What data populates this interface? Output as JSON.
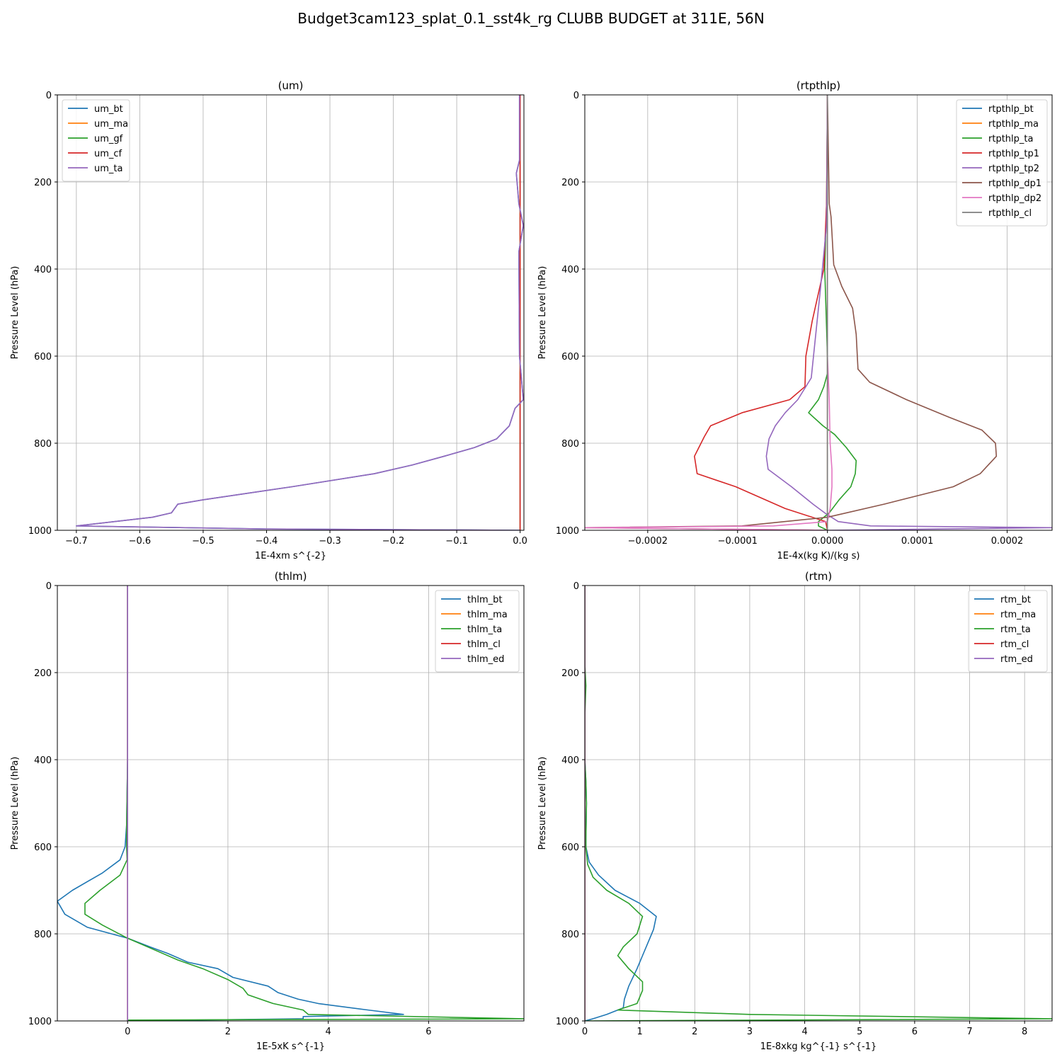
{
  "title": "Budget3cam123_splat_0.1_sst4k_rg CLUBB BUDGET at 311E, 56N",
  "colors": {
    "C0": "#1f77b4",
    "C1": "#ff7f0e",
    "C2": "#2ca02c",
    "C3": "#d62728",
    "C4": "#9467bd",
    "C5": "#8c564b",
    "C6": "#e377c2",
    "C7": "#7f7f7f"
  },
  "chart_data": [
    {
      "type": "line",
      "title": "(um)",
      "xlabel": "1E-4xm s^{-2}",
      "ylabel": "Pressure Level (hPa)",
      "xlim": [
        -0.73,
        0.006
      ],
      "ylim": [
        1000,
        0
      ],
      "xticks": [
        -0.7,
        -0.6,
        -0.5,
        -0.4,
        -0.3,
        -0.2,
        -0.1,
        0.0
      ],
      "xtick_labels": [
        "−0.7",
        "−0.6",
        "−0.5",
        "−0.4",
        "−0.3",
        "−0.2",
        "−0.1",
        "0.0"
      ],
      "yticks": [
        0,
        200,
        400,
        600,
        800,
        1000
      ],
      "ytick_labels": [
        "0",
        "200",
        "400",
        "600",
        "800",
        "1000"
      ],
      "grid": true,
      "legend": "upper-left",
      "series": [
        {
          "name": "um_bt",
          "color": "C0",
          "p": [
            0,
            150,
            180,
            250,
            300,
            360,
            600,
            700,
            720,
            760,
            790,
            810,
            830,
            850,
            870,
            900,
            930,
            940,
            960,
            970,
            990,
            997,
            1000
          ],
          "v": [
            -0.001,
            -0.001,
            -0.006,
            -0.002,
            0.005,
            -0.002,
            -0.001,
            0.005,
            -0.008,
            -0.017,
            -0.037,
            -0.072,
            -0.12,
            -0.17,
            -0.23,
            -0.36,
            -0.5,
            -0.54,
            -0.55,
            -0.58,
            -0.7,
            -0.4,
            0.0
          ]
        },
        {
          "name": "um_ma",
          "color": "C1",
          "p": [
            0,
            1000
          ],
          "v": [
            0,
            0
          ]
        },
        {
          "name": "um_gf",
          "color": "C2",
          "p": [
            0,
            1000
          ],
          "v": [
            0,
            0
          ]
        },
        {
          "name": "um_cf",
          "color": "C3",
          "p": [
            0,
            1000
          ],
          "v": [
            0,
            0
          ]
        },
        {
          "name": "um_ta",
          "color": "C4",
          "p": [
            0,
            150,
            180,
            250,
            300,
            360,
            600,
            700,
            720,
            760,
            790,
            810,
            830,
            850,
            870,
            900,
            930,
            940,
            960,
            970,
            990,
            997,
            1000
          ],
          "v": [
            -0.001,
            -0.001,
            -0.006,
            -0.002,
            0.005,
            -0.002,
            -0.001,
            0.005,
            -0.008,
            -0.017,
            -0.037,
            -0.072,
            -0.12,
            -0.17,
            -0.23,
            -0.36,
            -0.5,
            -0.54,
            -0.55,
            -0.58,
            -0.7,
            -0.4,
            0.0
          ]
        }
      ]
    },
    {
      "type": "line",
      "title": "(rtpthlp)",
      "xlabel": "1E-4x(kg K)/(kg s)",
      "ylabel": "Pressure Level (hPa)",
      "xlim": [
        -0.00027,
        0.00025
      ],
      "ylim": [
        1000,
        0
      ],
      "xticks": [
        -0.0002,
        -0.0001,
        0.0,
        0.0001,
        0.0002
      ],
      "xtick_labels": [
        "−0.0002",
        "−0.0001",
        "0.0000",
        "0.0001",
        "0.0002"
      ],
      "yticks": [
        0,
        200,
        400,
        600,
        800,
        1000
      ],
      "ytick_labels": [
        "0",
        "200",
        "400",
        "600",
        "800",
        "1000"
      ],
      "grid": true,
      "legend": "upper-right",
      "series": [
        {
          "name": "rtpthlp_bt",
          "color": "C0",
          "p": [
            0,
            1000
          ],
          "v": [
            0,
            0
          ]
        },
        {
          "name": "rtpthlp_ma",
          "color": "C1",
          "p": [
            0,
            1000
          ],
          "v": [
            0,
            0
          ]
        },
        {
          "name": "rtpthlp_ta",
          "color": "C2",
          "p": [
            0,
            250,
            400,
            600,
            640,
            670,
            700,
            730,
            760,
            780,
            810,
            840,
            870,
            900,
            930,
            960,
            980,
            990,
            1000
          ],
          "v": [
            0,
            -1e-06,
            -3e-06,
            0.0,
            0.0,
            -4e-06,
            -1e-05,
            -2.1e-05,
            -5e-06,
            8e-06,
            2.1e-05,
            3.2e-05,
            3.1e-05,
            2.6e-05,
            1.3e-05,
            2e-06,
            -1e-05,
            -1e-05,
            0.0
          ]
        },
        {
          "name": "rtpthlp_tp1",
          "color": "C3",
          "p": [
            0,
            250,
            400,
            520,
            600,
            670,
            700,
            730,
            760,
            785,
            830,
            870,
            900,
            950,
            980,
            1000
          ],
          "v": [
            0,
            -1e-06,
            -4e-06,
            -1.7e-05,
            -2.4e-05,
            -2.5e-05,
            -4.2e-05,
            -9.5e-05,
            -0.00013,
            -0.000137,
            -0.000148,
            -0.000145,
            -0.000102,
            -4.7e-05,
            -2e-06,
            0.0
          ]
        },
        {
          "name": "rtpthlp_tp2",
          "color": "C4",
          "p": [
            0,
            300,
            450,
            550,
            650,
            700,
            730,
            760,
            790,
            830,
            860,
            900,
            940,
            960,
            980,
            990,
            994,
            1000
          ],
          "v": [
            0,
            -1e-06,
            -8e-06,
            -1.3e-05,
            -1.8e-05,
            -3.3e-05,
            -4.7e-05,
            -5.8e-05,
            -6.5e-05,
            -6.8e-05,
            -6.6e-05,
            -4e-05,
            -1.6e-05,
            -3e-06,
            1.2e-05,
            4.8e-05,
            0.00025,
            0.0
          ]
        },
        {
          "name": "rtpthlp_dp1",
          "color": "C5",
          "p": [
            0,
            250,
            280,
            390,
            440,
            490,
            550,
            630,
            660,
            700,
            740,
            770,
            800,
            830,
            870,
            900,
            940,
            970,
            990,
            994,
            1000
          ],
          "v": [
            0,
            2e-06,
            4e-06,
            7e-06,
            1.6e-05,
            2.8e-05,
            3.2e-05,
            3.4e-05,
            4.7e-05,
            8.8e-05,
            0.000135,
            0.000172,
            0.000187,
            0.000188,
            0.00017,
            0.00014,
            6.3e-05,
            0.0,
            -9.5e-05,
            -0.00027,
            0.0
          ]
        },
        {
          "name": "rtpthlp_dp2",
          "color": "C6",
          "p": [
            0,
            600,
            700,
            800,
            860,
            900,
            950,
            980,
            990,
            994,
            1000
          ],
          "v": [
            0,
            0.0,
            2e-06,
            3e-06,
            5e-06,
            5e-06,
            3e-06,
            0.0,
            -6e-05,
            -0.00027,
            0.0
          ]
        },
        {
          "name": "rtpthlp_cl",
          "color": "C7",
          "p": [
            0,
            1000
          ],
          "v": [
            0,
            0
          ]
        }
      ]
    },
    {
      "type": "line",
      "title": "(thlm)",
      "xlabel": "1E-5xK s^{-1}",
      "ylabel": "Pressure Level (hPa)",
      "xlim": [
        -1.4,
        7.9
      ],
      "ylim": [
        1000,
        0
      ],
      "xticks": [
        0,
        2,
        4,
        6
      ],
      "xtick_labels": [
        "0",
        "2",
        "4",
        "6"
      ],
      "yticks": [
        0,
        200,
        400,
        600,
        800,
        1000
      ],
      "ytick_labels": [
        "0",
        "200",
        "400",
        "600",
        "800",
        "1000"
      ],
      "grid": true,
      "legend": "upper-right",
      "series": [
        {
          "name": "thlm_bt",
          "color": "C0",
          "p": [
            0,
            400,
            550,
            600,
            630,
            660,
            700,
            725,
            755,
            785,
            810,
            830,
            845,
            865,
            880,
            900,
            920,
            935,
            950,
            960,
            975,
            985,
            990,
            995,
            1000
          ],
          "v": [
            0,
            0.0,
            -0.02,
            -0.05,
            -0.15,
            -0.5,
            -1.1,
            -1.4,
            -1.25,
            -0.8,
            0.0,
            0.45,
            0.8,
            1.2,
            1.8,
            2.1,
            2.8,
            3.0,
            3.4,
            3.8,
            4.8,
            5.5,
            3.5,
            3.5,
            0.0
          ]
        },
        {
          "name": "thlm_ma",
          "color": "C1",
          "p": [
            0,
            1000
          ],
          "v": [
            0,
            0
          ]
        },
        {
          "name": "thlm_ta",
          "color": "C2",
          "p": [
            0,
            400,
            550,
            600,
            630,
            665,
            700,
            730,
            755,
            780,
            810,
            830,
            860,
            880,
            905,
            925,
            940,
            960,
            975,
            985,
            995,
            998,
            1000
          ],
          "v": [
            0,
            0.0,
            -0.02,
            -0.02,
            -0.01,
            -0.15,
            -0.55,
            -0.85,
            -0.85,
            -0.5,
            0.0,
            0.4,
            1.0,
            1.5,
            2.0,
            2.3,
            2.4,
            2.9,
            3.5,
            3.6,
            7.9,
            0.0,
            0.0
          ]
        },
        {
          "name": "thlm_cl",
          "color": "C3",
          "p": [
            0,
            1000
          ],
          "v": [
            0,
            0
          ]
        },
        {
          "name": "thlm_ed",
          "color": "C4",
          "p": [
            0,
            1000
          ],
          "v": [
            0,
            0
          ]
        }
      ]
    },
    {
      "type": "line",
      "title": "(rtm)",
      "xlabel": "1E-8xkg kg^{-1} s^{-1}",
      "ylabel": "Pressure Level (hPa)",
      "xlim": [
        0,
        8.5
      ],
      "ylim": [
        1000,
        0
      ],
      "xticks": [
        0,
        1,
        2,
        3,
        4,
        5,
        6,
        7,
        8
      ],
      "xtick_labels": [
        "0",
        "1",
        "2",
        "3",
        "4",
        "5",
        "6",
        "7",
        "8"
      ],
      "yticks": [
        0,
        200,
        400,
        600,
        800,
        1000
      ],
      "ytick_labels": [
        "0",
        "200",
        "400",
        "600",
        "800",
        "1000"
      ],
      "grid": true,
      "legend": "upper-right",
      "series": [
        {
          "name": "rtm_bt",
          "color": "C0",
          "p": [
            0,
            400,
            450,
            500,
            580,
            600,
            635,
            665,
            700,
            730,
            760,
            790,
            820,
            850,
            880,
            920,
            950,
            970,
            985,
            995,
            1000
          ],
          "v": [
            0,
            0.0,
            0.02,
            0.03,
            0.02,
            0.02,
            0.08,
            0.25,
            0.55,
            1.0,
            1.3,
            1.25,
            1.15,
            1.05,
            0.95,
            0.8,
            0.72,
            0.7,
            0.4,
            0.15,
            0.0
          ]
        },
        {
          "name": "rtm_ma",
          "color": "C1",
          "p": [
            0,
            1000
          ],
          "v": [
            0,
            0
          ]
        },
        {
          "name": "rtm_ta",
          "color": "C2",
          "p": [
            0,
            180,
            230,
            300,
            400,
            450,
            500,
            580,
            600,
            640,
            670,
            700,
            730,
            760,
            800,
            830,
            850,
            880,
            910,
            930,
            960,
            975,
            985,
            995,
            1000
          ],
          "v": [
            0,
            0.0,
            0.02,
            0.0,
            0.0,
            0.02,
            0.03,
            0.02,
            0.02,
            0.05,
            0.15,
            0.4,
            0.8,
            1.05,
            0.95,
            0.7,
            0.6,
            0.8,
            1.05,
            1.05,
            0.95,
            0.6,
            3.0,
            8.5,
            0.0
          ]
        },
        {
          "name": "rtm_cl",
          "color": "C3",
          "p": [
            0,
            1000
          ],
          "v": [
            0,
            0
          ]
        },
        {
          "name": "rtm_ed",
          "color": "C4",
          "p": [
            0,
            1000
          ],
          "v": [
            0,
            0
          ]
        }
      ]
    }
  ]
}
